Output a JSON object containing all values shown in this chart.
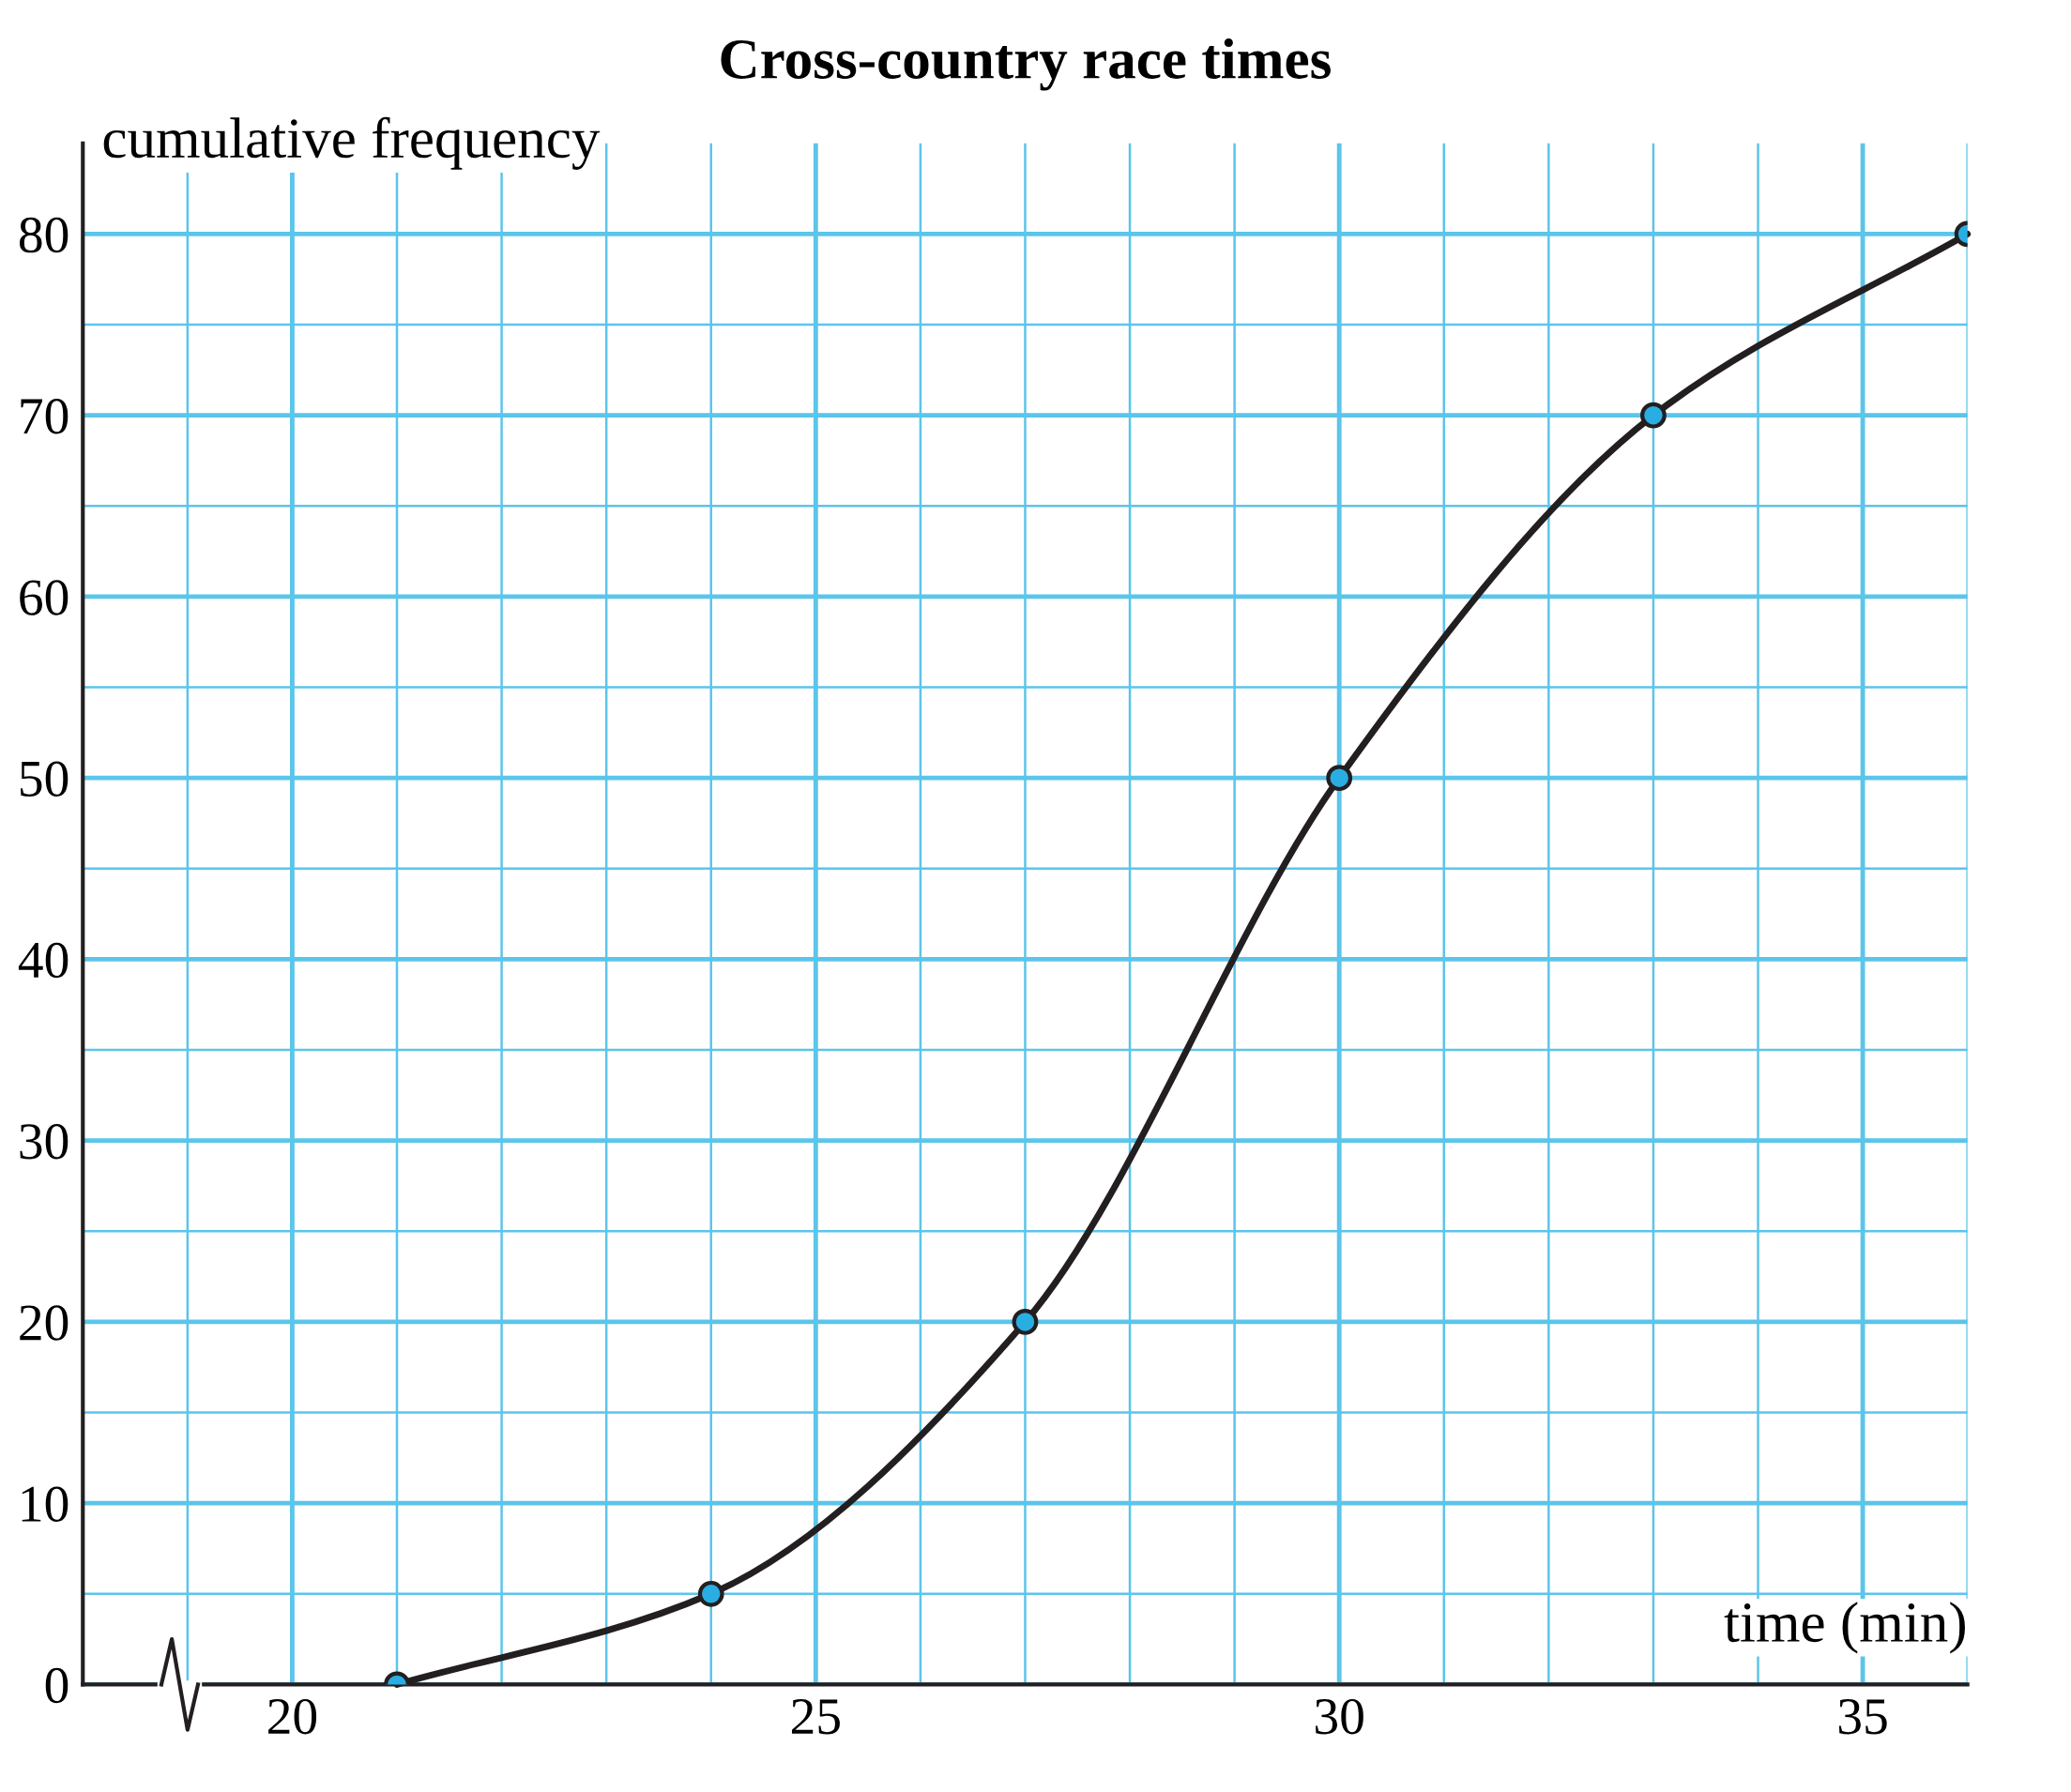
{
  "chart_data": {
    "type": "line",
    "title": "Cross-country race times",
    "xlabel": "time (min)",
    "ylabel": "cumulative frequency",
    "series": [
      {
        "x": [
          21,
          24,
          27,
          30,
          33,
          36
        ],
        "values": [
          0,
          5,
          20,
          50,
          70,
          80
        ],
        "color": "#231f20"
      }
    ],
    "xlim": [
      18,
      36
    ],
    "ylim": [
      0,
      85
    ],
    "xticks": [
      {
        "value": 19,
        "label": null
      },
      20,
      {
        "value": 21,
        "label": null
      },
      {
        "value": 22,
        "label": null
      },
      {
        "value": 23,
        "label": null
      },
      {
        "value": 24,
        "label": null
      },
      25,
      {
        "value": 26,
        "label": null
      },
      {
        "value": 27,
        "label": null
      },
      {
        "value": 28,
        "label": null
      },
      {
        "value": 29,
        "label": null
      },
      30,
      {
        "value": 31,
        "label": null
      },
      {
        "value": 32,
        "label": null
      },
      {
        "value": 33,
        "label": null
      },
      {
        "value": 34,
        "label": null
      },
      35,
      {
        "value": 36,
        "label": null
      }
    ],
    "yticks": [
      0,
      {
        "value": 5,
        "label": null
      },
      10,
      {
        "value": 15,
        "label": null
      },
      20,
      {
        "value": 25,
        "label": null
      },
      30,
      {
        "value": 35,
        "label": null
      },
      40,
      {
        "value": 45,
        "label": null
      },
      50,
      {
        "value": 55,
        "label": null
      },
      60,
      {
        "value": 65,
        "label": null
      },
      70,
      {
        "value": 75,
        "label": null
      },
      80
    ],
    "grid": true,
    "marker": "circle",
    "line_style": "solid"
  }
}
